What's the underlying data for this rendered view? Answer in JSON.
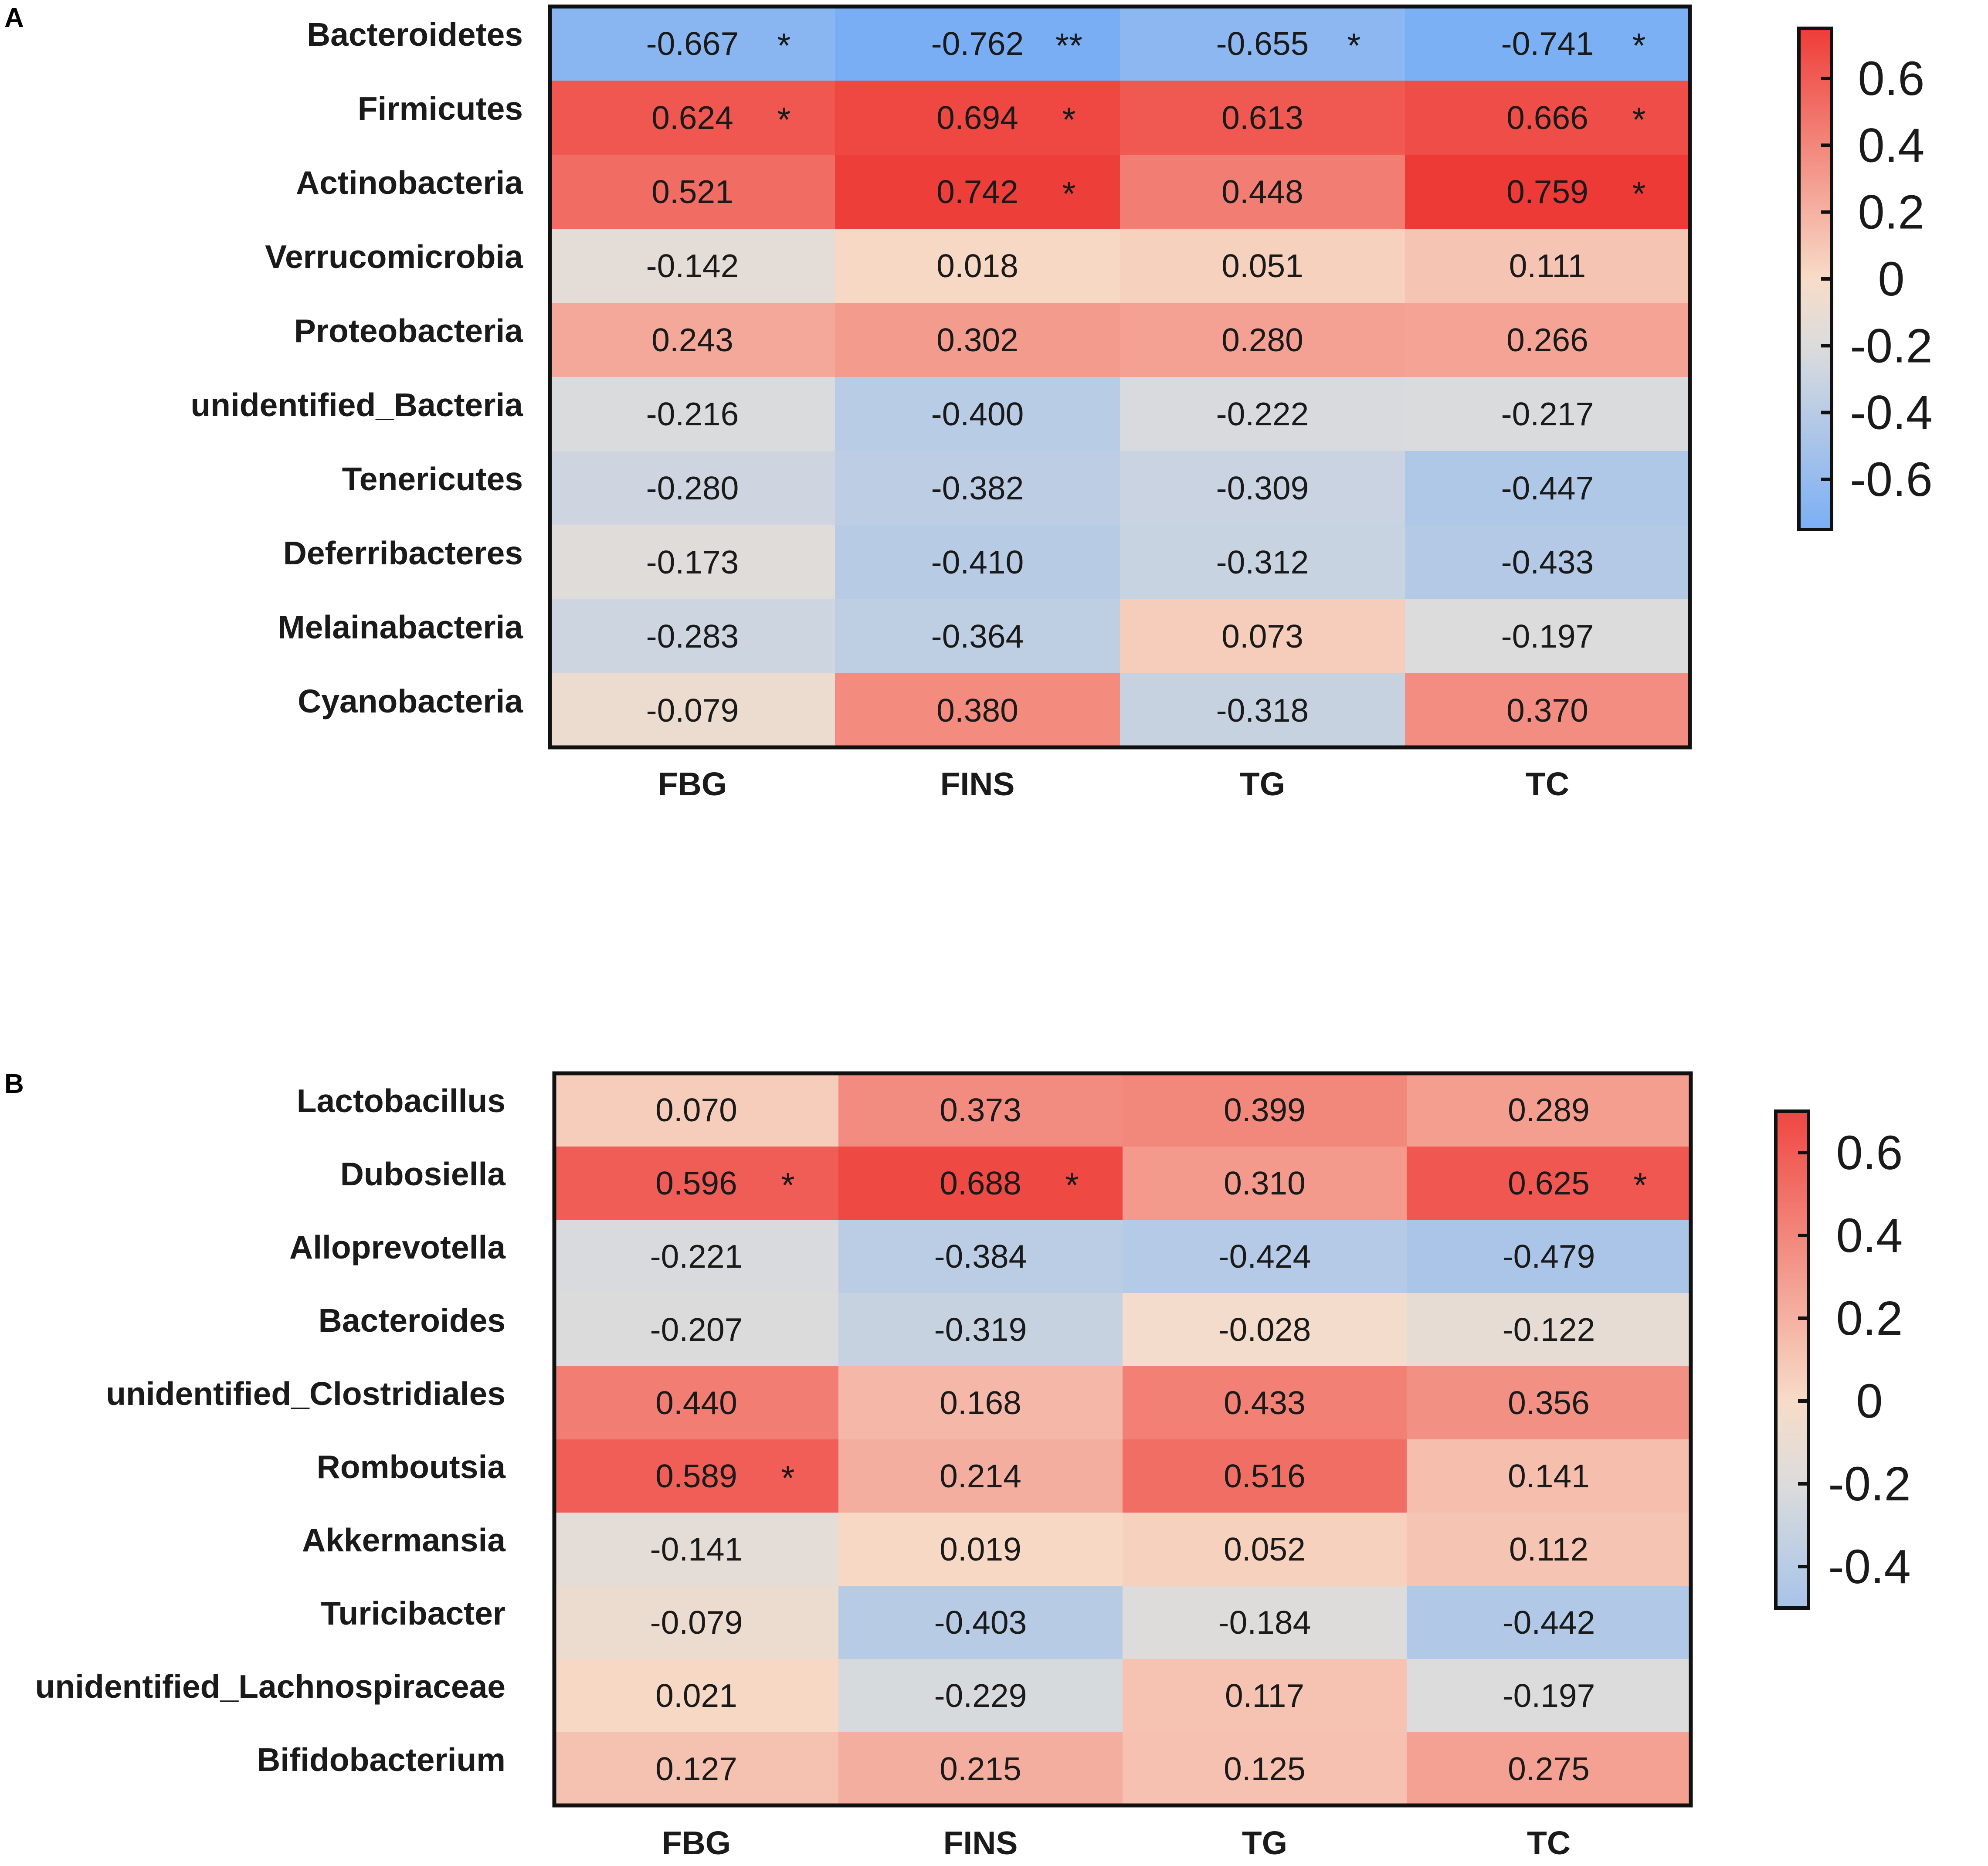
{
  "chart_data": [
    {
      "type": "heatmap",
      "panel": "A",
      "rows": [
        "Bacteroidetes",
        "Firmicutes",
        "Actinobacteria",
        "Verrucomicrobia",
        "Proteobacteria",
        "unidentified_Bacteria",
        "Tenericutes",
        "Deferribacteres",
        "Melainabacteria",
        "Cyanobacteria"
      ],
      "columns": [
        "FBG",
        "FINS",
        "TG",
        "TC"
      ],
      "values": [
        [
          -0.667,
          -0.762,
          -0.655,
          -0.741
        ],
        [
          0.624,
          0.694,
          0.613,
          0.666
        ],
        [
          0.521,
          0.742,
          0.448,
          0.759
        ],
        [
          -0.142,
          0.018,
          0.051,
          0.111
        ],
        [
          0.243,
          0.302,
          0.28,
          0.266
        ],
        [
          -0.216,
          -0.4,
          -0.222,
          -0.217
        ],
        [
          -0.28,
          -0.382,
          -0.309,
          -0.447
        ],
        [
          -0.173,
          -0.41,
          -0.312,
          -0.433
        ],
        [
          -0.283,
          -0.364,
          0.073,
          -0.197
        ],
        [
          -0.079,
          0.38,
          -0.318,
          0.37
        ]
      ],
      "labels": [
        [
          "-0.667",
          "-0.762",
          "-0.655",
          "-0.741"
        ],
        [
          "0.624",
          "0.694",
          "0.613",
          "0.666"
        ],
        [
          "0.521",
          "0.742",
          "0.448",
          "0.759"
        ],
        [
          "-0.142",
          "0.018",
          "0.051",
          "0.111"
        ],
        [
          "0.243",
          "0.302",
          "0.280",
          "0.266"
        ],
        [
          "-0.216",
          "-0.400",
          "-0.222",
          "-0.217"
        ],
        [
          "-0.280",
          "-0.382",
          "-0.309",
          "-0.447"
        ],
        [
          "-0.173",
          "-0.410",
          "-0.312",
          "-0.433"
        ],
        [
          "-0.283",
          "-0.364",
          "0.073",
          "-0.197"
        ],
        [
          "-0.079",
          "0.380",
          "-0.318",
          "0.370"
        ]
      ],
      "significance": [
        [
          "*",
          "**",
          "*",
          "*"
        ],
        [
          "*",
          "*",
          "",
          "*"
        ],
        [
          "",
          "*",
          "",
          "*"
        ],
        [
          "",
          "",
          "",
          ""
        ],
        [
          "",
          "",
          "",
          ""
        ],
        [
          "",
          "",
          "",
          ""
        ],
        [
          "",
          "",
          "",
          ""
        ],
        [
          "",
          "",
          "",
          ""
        ],
        [
          "",
          "",
          "",
          ""
        ],
        [
          "",
          "",
          "",
          ""
        ]
      ],
      "colorbar": {
        "range": [
          -0.75,
          0.75
        ],
        "ticks": [
          0.6,
          0.4,
          0.2,
          0,
          -0.2,
          -0.4,
          -0.6
        ],
        "tick_labels": [
          "0.6",
          "0.4",
          "0.2",
          "0",
          "-0.2",
          "-0.4",
          "-0.6"
        ]
      }
    },
    {
      "type": "heatmap",
      "panel": "B",
      "rows": [
        "Lactobacillus",
        "Dubosiella",
        "Alloprevotella",
        "Bacteroides",
        "unidentified_Clostridiales",
        "Romboutsia",
        "Akkermansia",
        "Turicibacter",
        "unidentified_Lachnospiraceae",
        "Bifidobacterium"
      ],
      "columns": [
        "FBG",
        "FINS",
        "TG",
        "TC"
      ],
      "values": [
        [
          0.07,
          0.373,
          0.399,
          0.289
        ],
        [
          0.596,
          0.688,
          0.31,
          0.625
        ],
        [
          -0.221,
          -0.384,
          -0.424,
          -0.479
        ],
        [
          -0.207,
          -0.319,
          -0.028,
          -0.122
        ],
        [
          0.44,
          0.168,
          0.433,
          0.356
        ],
        [
          0.589,
          0.214,
          0.516,
          0.141
        ],
        [
          -0.141,
          0.019,
          0.052,
          0.112
        ],
        [
          -0.079,
          -0.403,
          -0.184,
          -0.442
        ],
        [
          0.021,
          -0.229,
          0.117,
          -0.197
        ],
        [
          0.127,
          0.215,
          0.125,
          0.275
        ]
      ],
      "labels": [
        [
          "0.070",
          "0.373",
          "0.399",
          "0.289"
        ],
        [
          "0.596",
          "0.688",
          "0.310",
          "0.625"
        ],
        [
          "-0.221",
          "-0.384",
          "-0.424",
          "-0.479"
        ],
        [
          "-0.207",
          "-0.319",
          "-0.028",
          "-0.122"
        ],
        [
          "0.440",
          "0.168",
          "0.433",
          "0.356"
        ],
        [
          "0.589",
          "0.214",
          "0.516",
          "0.141"
        ],
        [
          "-0.141",
          "0.019",
          "0.052",
          "0.112"
        ],
        [
          "-0.079",
          "-0.403",
          "-0.184",
          "-0.442"
        ],
        [
          "0.021",
          "-0.229",
          "0.117",
          "-0.197"
        ],
        [
          "0.127",
          "0.215",
          "0.125",
          "0.275"
        ]
      ],
      "significance": [
        [
          "",
          "",
          "",
          ""
        ],
        [
          "*",
          "*",
          "",
          "*"
        ],
        [
          "",
          "",
          "",
          ""
        ],
        [
          "",
          "",
          "",
          ""
        ],
        [
          "",
          "",
          "",
          ""
        ],
        [
          "*",
          "",
          "",
          ""
        ],
        [
          "",
          "",
          "",
          ""
        ],
        [
          "",
          "",
          "",
          ""
        ],
        [
          "",
          "",
          "",
          ""
        ],
        [
          "",
          "",
          "",
          ""
        ]
      ],
      "colorbar": {
        "range": [
          -0.5,
          0.7
        ],
        "ticks": [
          0.6,
          0.4,
          0.2,
          0,
          -0.2,
          -0.4
        ],
        "tick_labels": [
          "0.6",
          "0.4",
          "0.2",
          "0",
          "-0.2",
          "-0.4"
        ]
      }
    }
  ],
  "colors": {
    "negative": "#79aef5",
    "neutral": "#dcdcdc",
    "near_zero_positive": "#f7dcc8",
    "positive": "#ee3a36"
  }
}
